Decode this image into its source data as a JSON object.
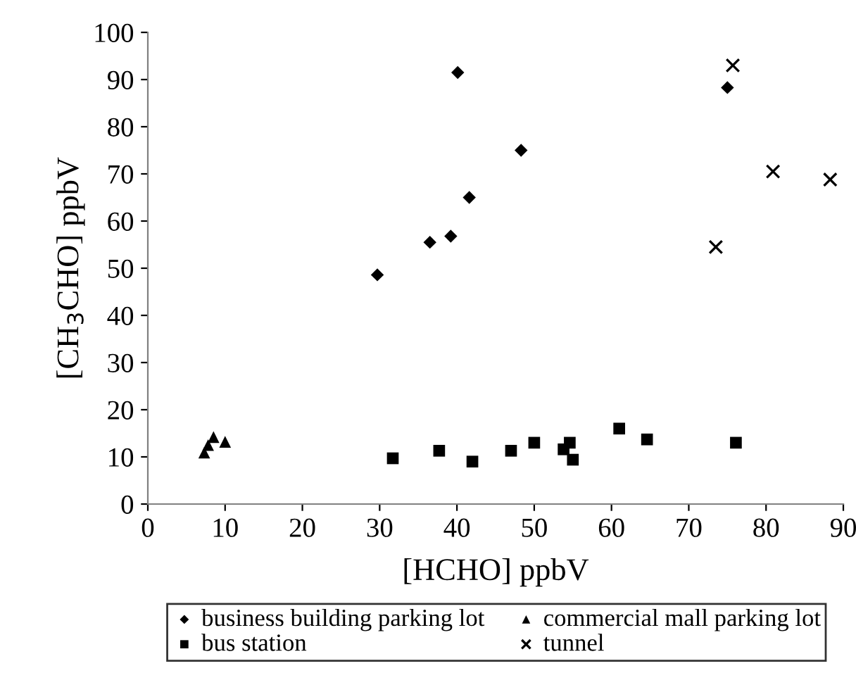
{
  "chart_data": {
    "type": "scatter",
    "xlabel": "[HCHO] ppbV",
    "ylabel": "[CH$_{3}$CHO] ppbV",
    "xlim": [
      0,
      90
    ],
    "xticks": [
      0,
      10,
      20,
      30,
      40,
      50,
      60,
      70,
      80,
      90
    ],
    "ylim": [
      0,
      100
    ],
    "yticks": [
      0,
      10,
      20,
      30,
      40,
      50,
      60,
      70,
      80,
      90,
      100
    ],
    "grid": false,
    "legend": "bottom",
    "series": [
      {
        "name": "business building parking lot",
        "color": "#000000",
        "marker": "diamond",
        "x": [
          29.7,
          36.5,
          39.2,
          40.1,
          41.6,
          48.3,
          75.0
        ],
        "values": [
          48.6,
          55.5,
          56.8,
          91.5,
          65.0,
          75.0,
          88.3
        ]
      },
      {
        "name": "bus station",
        "color": "#000000",
        "marker": "square",
        "x": [
          31.7,
          37.7,
          42.0,
          47.0,
          50.0,
          53.8,
          54.6,
          55.0,
          61.0,
          64.6,
          76.1
        ],
        "values": [
          9.7,
          11.3,
          9.0,
          11.3,
          13.0,
          11.6,
          13.0,
          9.4,
          16.0,
          13.7,
          13.0
        ]
      },
      {
        "name": "commercial mall parking lot",
        "color": "#000000",
        "marker": "triangle",
        "x": [
          7.3,
          7.8,
          8.5,
          10.0
        ],
        "values": [
          10.9,
          12.5,
          14.2,
          13.2
        ]
      },
      {
        "name": "tunnel",
        "color": "#000000",
        "marker": "cross",
        "x": [
          73.5,
          75.7,
          80.9,
          88.3
        ],
        "values": [
          54.5,
          93.0,
          70.5,
          68.8
        ]
      }
    ]
  }
}
